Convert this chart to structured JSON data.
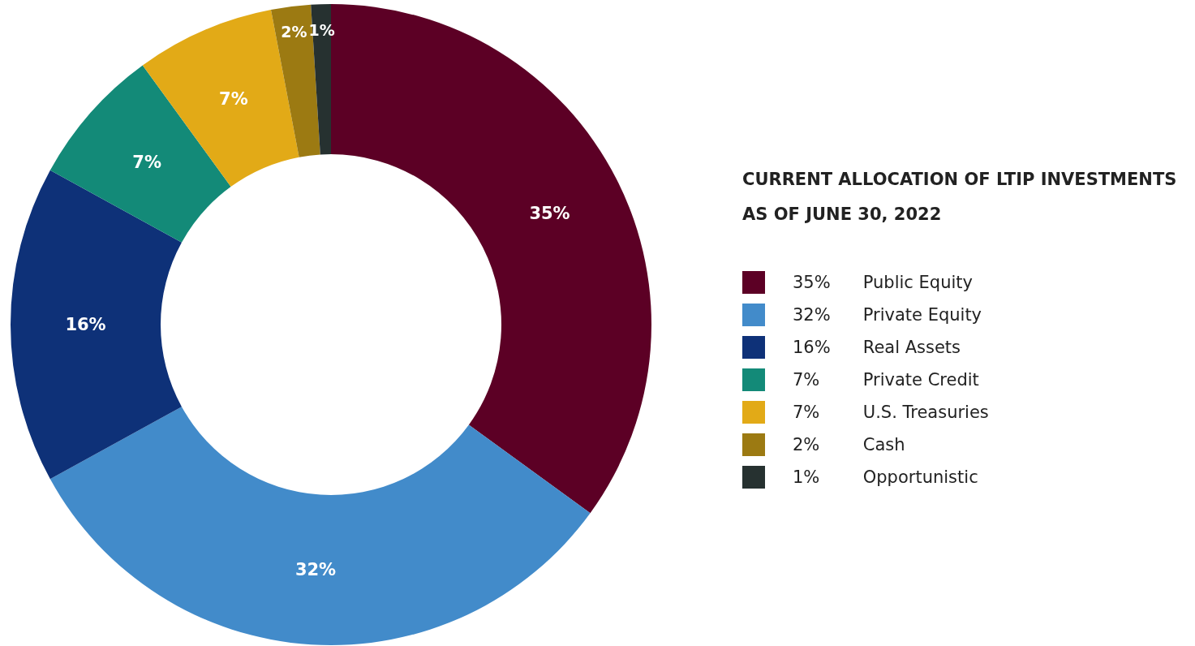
{
  "chart_data": {
    "type": "donut",
    "title": "CURRENT ALLOCATION OF LTIP INVESTMENTS AS OF JUNE 30, 2022",
    "categories": [
      "Public Equity",
      "Private Equity",
      "Real Assets",
      "Private Credit",
      "U.S. Treasuries",
      "Cash",
      "Opportunistic"
    ],
    "values": [
      35,
      32,
      16,
      7,
      7,
      2,
      1
    ],
    "value_labels": [
      "35%",
      "32%",
      "16%",
      "7%",
      "7%",
      "2%",
      "1%"
    ],
    "colors": [
      "#5c0025",
      "#428bca",
      "#0e3178",
      "#138a78",
      "#e2aa17",
      "#9c7a12",
      "#263130"
    ],
    "data_labels": true,
    "legend": "right"
  }
}
